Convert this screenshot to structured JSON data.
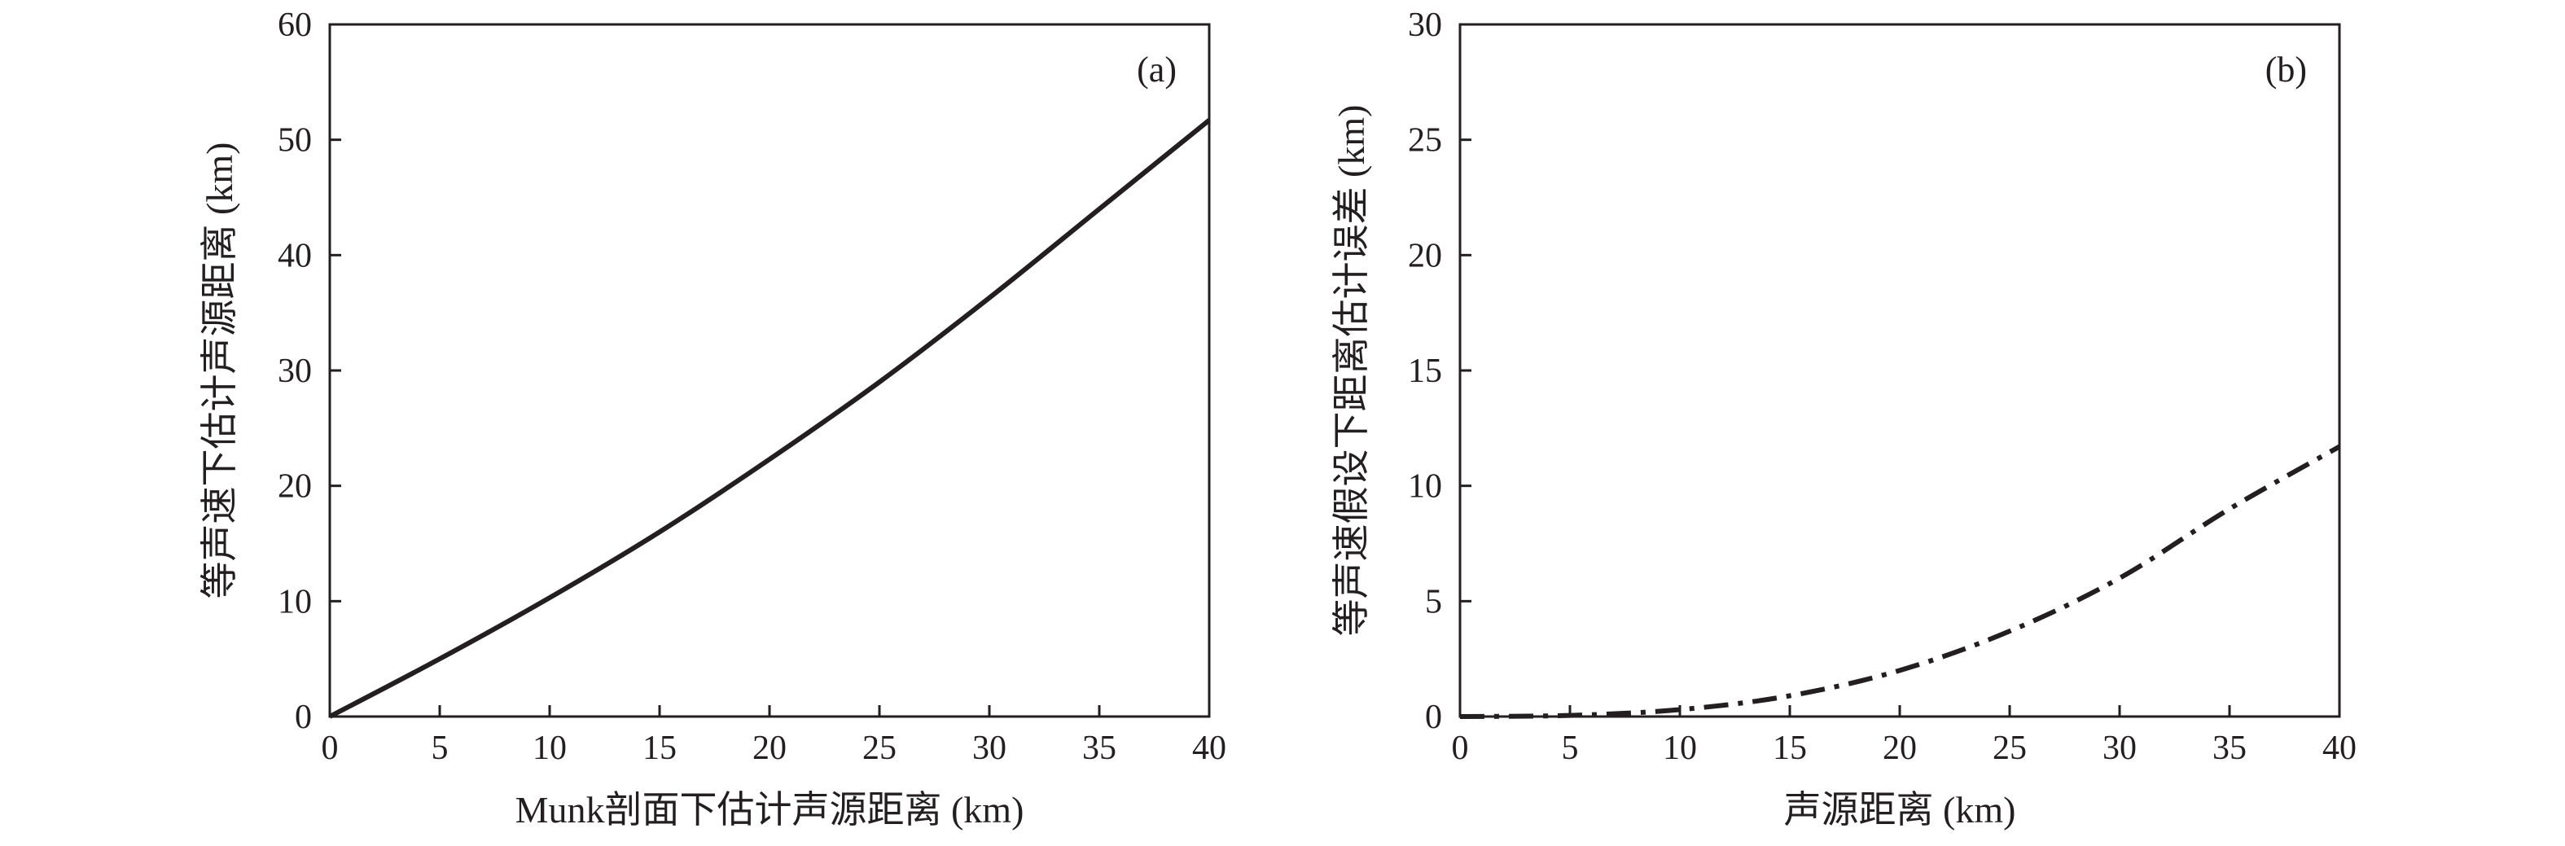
{
  "chart_data": [
    {
      "panel": "(a)",
      "type": "line",
      "xlabel": "Munk剖面下估计声源距离 (km)",
      "ylabel": "等声速下估计声源距离 (km)",
      "xlim": [
        0,
        40
      ],
      "ylim": [
        0,
        60
      ],
      "xticks": [
        0,
        5,
        10,
        15,
        20,
        25,
        30,
        35,
        40
      ],
      "yticks": [
        0,
        10,
        20,
        30,
        40,
        50,
        60
      ],
      "grid": false,
      "line_style": "solid",
      "color": "#231f20",
      "series": [
        {
          "x": [
            0,
            5,
            10,
            15,
            20,
            25,
            30,
            35,
            40
          ],
          "values": [
            0,
            5.0,
            10.3,
            16.0,
            22.3,
            29.0,
            36.3,
            44.0,
            51.7
          ]
        }
      ]
    },
    {
      "panel": "(b)",
      "type": "line",
      "xlabel": "声源距离 (km)",
      "ylabel": "等声速假设下距离估计误差 (km)",
      "xlim": [
        0,
        40
      ],
      "ylim": [
        0,
        30
      ],
      "xticks": [
        0,
        5,
        10,
        15,
        20,
        25,
        30,
        35,
        40
      ],
      "yticks": [
        0,
        5,
        10,
        15,
        20,
        25,
        30
      ],
      "grid": false,
      "line_style": "dash-dot",
      "color": "#231f20",
      "series": [
        {
          "x": [
            0,
            5,
            10,
            15,
            20,
            25,
            30,
            35,
            40
          ],
          "values": [
            0,
            0.05,
            0.3,
            0.9,
            2.0,
            3.7,
            6.0,
            9.0,
            11.7
          ]
        }
      ]
    }
  ]
}
